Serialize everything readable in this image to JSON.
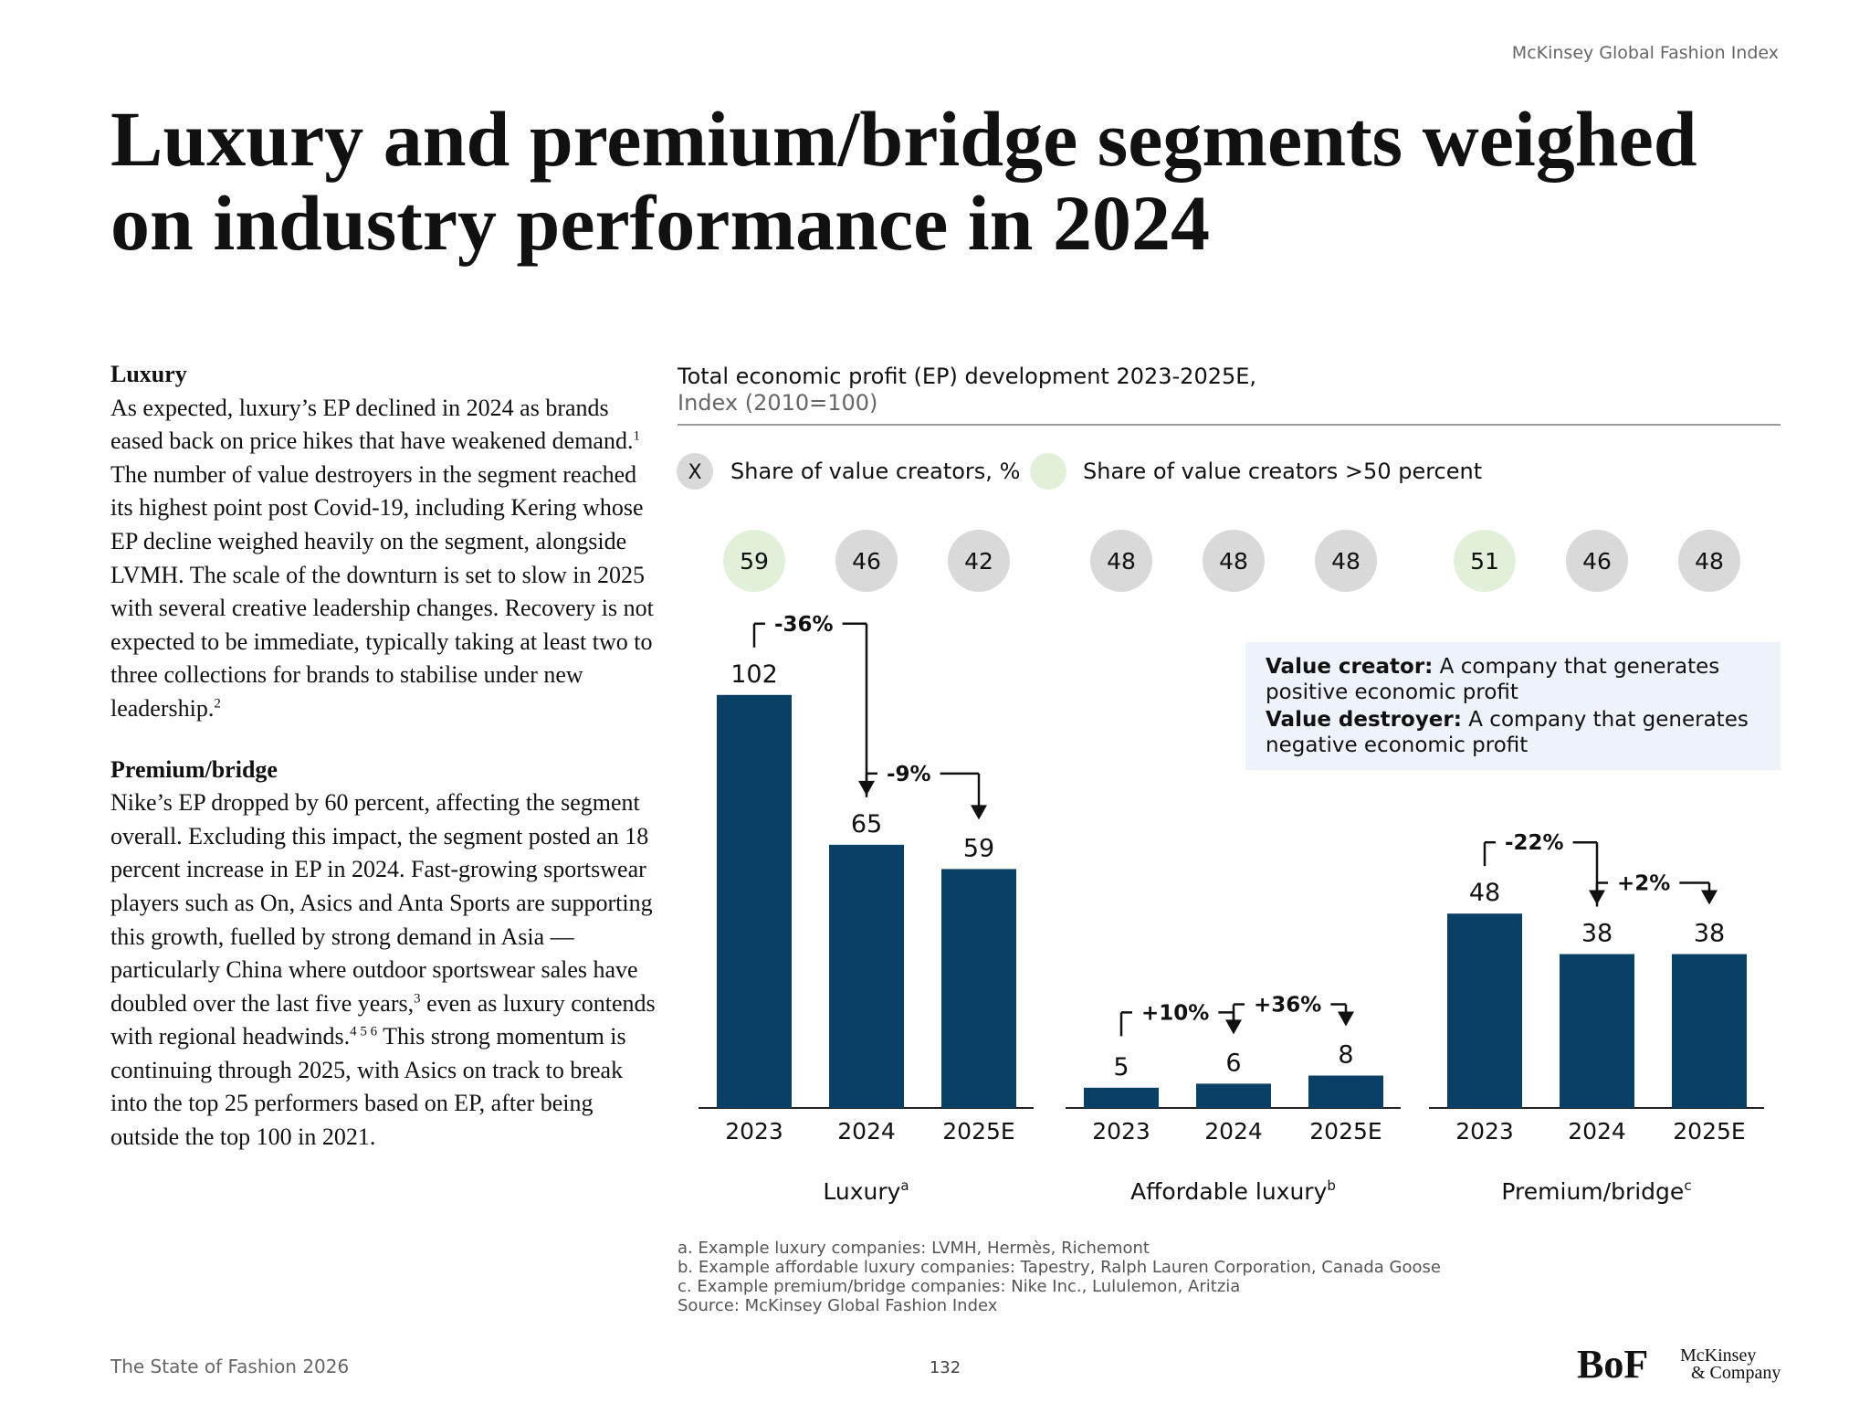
{
  "header": {
    "source": "McKinsey Global Fashion Index",
    "title": [
      "Luxury and premium/bridge segments weighed",
      "on industry performance in 2024"
    ]
  },
  "body": {
    "sections": [
      {
        "heading": "Luxury",
        "runs": [
          {
            "text": "As expected, luxury’s EP declined in 2024 as brands eased back on price hikes that have weakened demand.",
            "sup": "1"
          },
          {
            "text": " The number of value destroyers in the segment reached its highest point post Covid-19, including Kering whose EP decline weighed heavily on the segment, alongside LVMH. The scale of the downturn is set to slow in 2025 with several creative leadership changes. Recovery is not expected to be immediate, typically taking at least two to three collections for brands to stabilise under new leadership.",
            "sup": "2"
          }
        ]
      },
      {
        "heading": "Premium/bridge",
        "runs": [
          {
            "text": "Nike’s EP dropped by 60 percent, affecting the segment overall. Excluding this impact, the segment posted an 18 percent increase in EP in 2024. Fast-growing sportswear players such as On, Asics and Anta Sports are supporting this growth, fuelled by strong demand in Asia — particularly China where outdoor sportswear sales have doubled over the last five years,",
            "sup": "3"
          },
          {
            "text": " even as luxury contends with regional headwinds.",
            "sup": "4 5 6"
          },
          {
            "text": " This strong momentum is continuing through 2025, with Asics on track to break into the top 25 performers based on EP, after being outside the top 100 in 2021."
          }
        ]
      }
    ]
  },
  "chart": {
    "title": "Total economic profit (EP) development 2023-2025E,",
    "subtitle": "Index (2010=100)",
    "legend": {
      "marker": "X",
      "share": "Share of value creators, %",
      "highlight": "Share of value creators >50 percent",
      "marker_color": "#d9d9d9",
      "highlight_color": "#e2efd9"
    },
    "definitions": [
      {
        "term": "Value creator:",
        "text": " A company that generates positive economic profit"
      },
      {
        "term": "Value destroyer:",
        "text": " A company that generates negative economic profit"
      }
    ],
    "footnotes": [
      "a. Example luxury companies: LVMH, Hermès, Richemont",
      "b. Example affordable luxury companies: Tapestry, Ralph Lauren Corporation, Canada Goose",
      "c. Example premium/bridge companies: Nike Inc., Lululemon, Aritzia",
      "Source: McKinsey Global Fashion Index"
    ]
  },
  "chart_data": [
    {
      "type": "bar",
      "name": "Luxury",
      "name_sup": "a",
      "categories": [
        "2023",
        "2024",
        "2025E"
      ],
      "values": [
        102,
        65,
        59
      ],
      "shares": [
        59,
        46,
        42
      ],
      "share_colors": [
        "#e2efd9",
        "#d9d9d9",
        "#d9d9d9"
      ],
      "changes": [
        "-36%",
        "-9%"
      ],
      "color": "#0b4066",
      "ylim": [
        0,
        120
      ]
    },
    {
      "type": "bar",
      "name": "Affordable luxury",
      "name_sup": "b",
      "categories": [
        "2023",
        "2024",
        "2025E"
      ],
      "values": [
        5,
        6,
        8
      ],
      "shares": [
        48,
        48,
        48
      ],
      "share_colors": [
        "#d9d9d9",
        "#d9d9d9",
        "#d9d9d9"
      ],
      "changes": [
        "+10%",
        "+36%"
      ],
      "color": "#0b4066",
      "ylim": [
        0,
        120
      ]
    },
    {
      "type": "bar",
      "name": "Premium/bridge",
      "name_sup": "c",
      "categories": [
        "2023",
        "2024",
        "2025E"
      ],
      "values": [
        48,
        38,
        38
      ],
      "shares": [
        51,
        46,
        48
      ],
      "share_colors": [
        "#e2efd9",
        "#d9d9d9",
        "#d9d9d9"
      ],
      "changes": [
        "-22%",
        "+2%"
      ],
      "color": "#0b4066",
      "ylim": [
        0,
        120
      ]
    }
  ],
  "footer": {
    "left": "The State of Fashion 2026",
    "page": "132",
    "logo": "BoF",
    "partner": [
      "McKinsey",
      "& Company"
    ]
  }
}
